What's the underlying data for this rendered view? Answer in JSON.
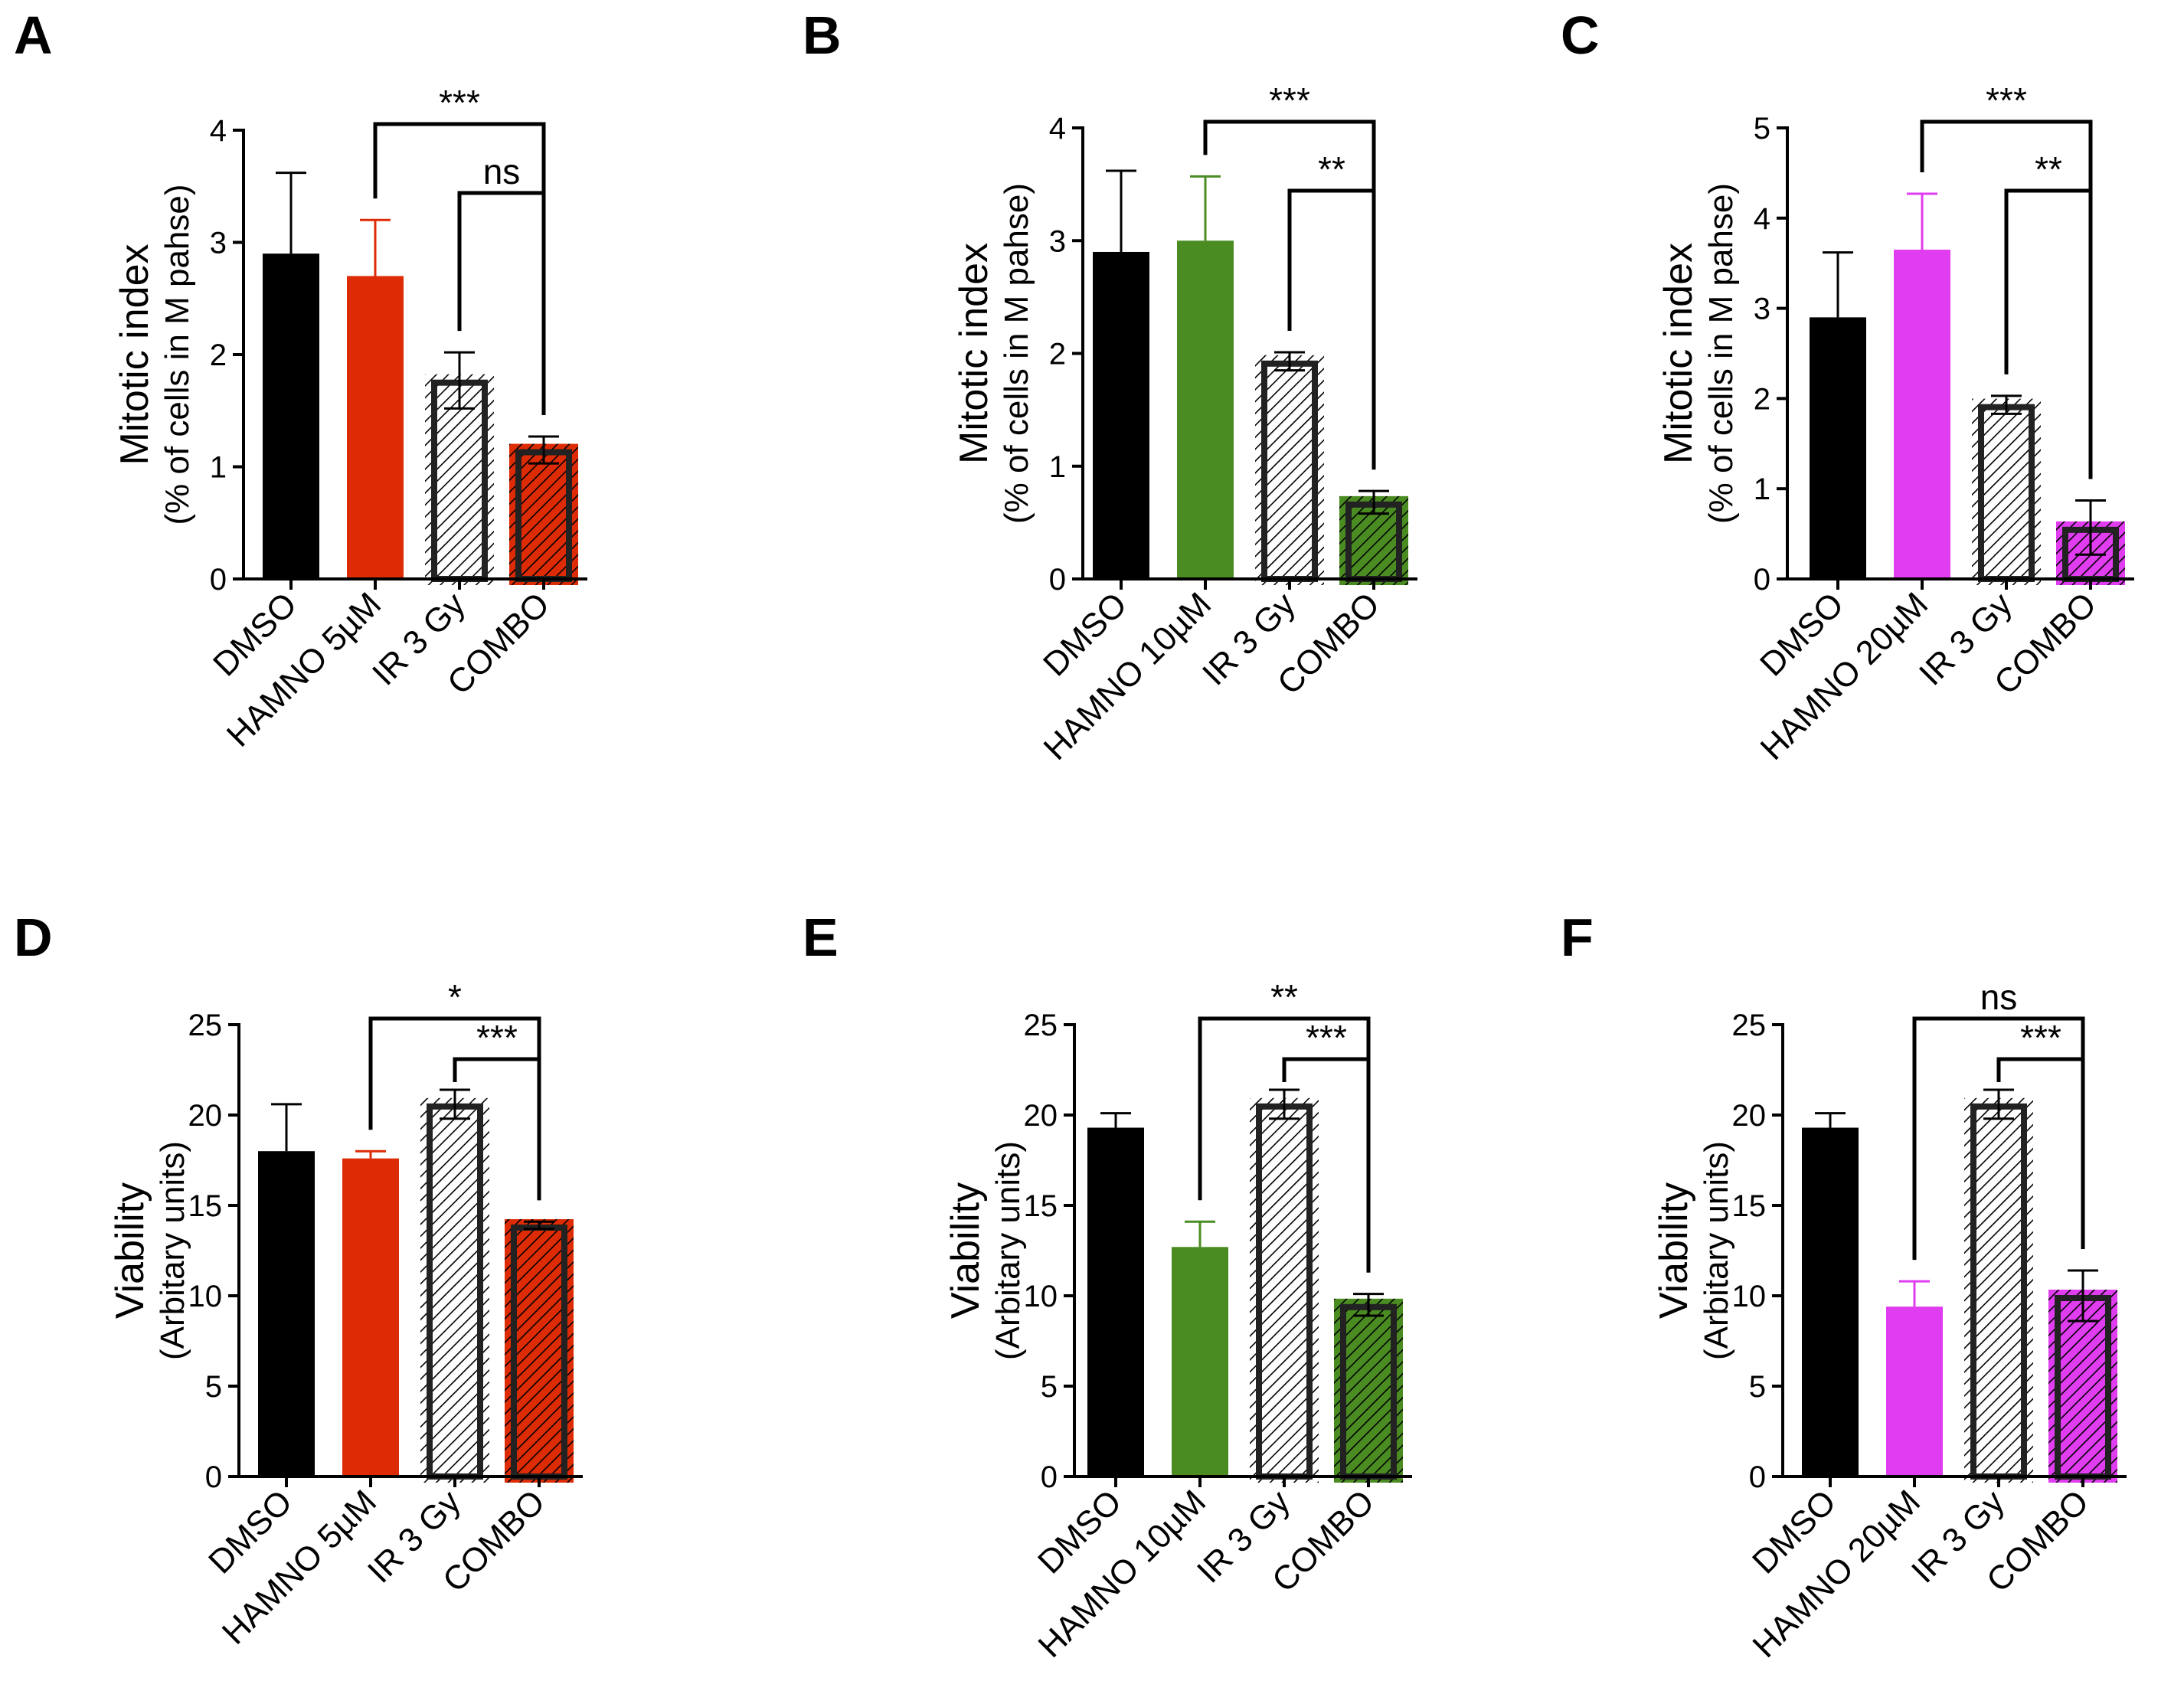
{
  "colors": {
    "dmso": "#000000",
    "red": "#dd2c05",
    "green": "#4b8c22",
    "magenta": "#e03cf0",
    "hatch_white": "#ffffff"
  },
  "chart_data": [
    {
      "panel": "A",
      "type": "bar",
      "ylabel": "Mitotic index",
      "ylabel_sub": "(% of cells in M pahse)",
      "ylim": [
        0,
        4
      ],
      "yticks": [
        "0",
        "1",
        "2",
        "3",
        "4"
      ],
      "categories": [
        "DMSO",
        "HAMNO 5µM",
        "IR 3 Gy",
        "COMBO"
      ],
      "values": [
        2.9,
        2.7,
        1.77,
        1.15
      ],
      "errors": [
        0.72,
        0.5,
        0.25,
        0.12
      ],
      "bar_styles": [
        "solid",
        "solid",
        "hatch",
        "hatch"
      ],
      "bar_colors": [
        "#000000",
        "#dd2c05",
        "#ffffff",
        "#dd2c05"
      ],
      "significance": [
        {
          "from": 1,
          "to": 3,
          "label": "***"
        },
        {
          "from": 2,
          "to": 3,
          "label": "ns"
        }
      ]
    },
    {
      "panel": "B",
      "type": "bar",
      "ylabel": "Mitotic index",
      "ylabel_sub": "(% of cells in M pahse)",
      "ylim": [
        0,
        4
      ],
      "yticks": [
        "0",
        "1",
        "2",
        "3",
        "4"
      ],
      "categories": [
        "DMSO",
        "HAMNO 10µM",
        "IR 3 Gy",
        "COMBO"
      ],
      "values": [
        2.9,
        3.0,
        1.93,
        0.68
      ],
      "errors": [
        0.72,
        0.57,
        0.08,
        0.1
      ],
      "bar_styles": [
        "solid",
        "solid",
        "hatch",
        "hatch"
      ],
      "bar_colors": [
        "#000000",
        "#4b8c22",
        "#ffffff",
        "#4b8c22"
      ],
      "significance": [
        {
          "from": 1,
          "to": 3,
          "label": "***"
        },
        {
          "from": 2,
          "to": 3,
          "label": "**"
        }
      ]
    },
    {
      "panel": "C",
      "type": "bar",
      "ylabel": "Mitotic index",
      "ylabel_sub": "(% of cells in M pahse)",
      "ylim": [
        0,
        5
      ],
      "yticks": [
        "0",
        "1",
        "2",
        "3",
        "4",
        "5"
      ],
      "categories": [
        "DMSO",
        "HAMNO 20µM",
        "IR 3 Gy",
        "COMBO"
      ],
      "values": [
        2.9,
        3.65,
        1.93,
        0.57
      ],
      "errors": [
        0.72,
        0.62,
        0.1,
        0.3
      ],
      "bar_styles": [
        "solid",
        "solid",
        "hatch",
        "hatch"
      ],
      "bar_colors": [
        "#000000",
        "#e03cf0",
        "#ffffff",
        "#e03cf0"
      ],
      "significance": [
        {
          "from": 1,
          "to": 3,
          "label": "***"
        },
        {
          "from": 2,
          "to": 3,
          "label": "**"
        }
      ]
    },
    {
      "panel": "D",
      "type": "bar",
      "ylabel": "Viability",
      "ylabel_sub": "(Arbitary units)",
      "ylim": [
        0,
        25
      ],
      "yticks": [
        "0",
        "5",
        "10",
        "15",
        "20",
        "25"
      ],
      "categories": [
        "DMSO",
        "HAMNO 5µM",
        "IR 3 Gy",
        "COMBO"
      ],
      "values": [
        18.0,
        17.6,
        20.6,
        13.9
      ],
      "errors": [
        2.6,
        0.4,
        0.8,
        0.2
      ],
      "bar_styles": [
        "solid",
        "solid",
        "hatch",
        "hatch"
      ],
      "bar_colors": [
        "#000000",
        "#dd2c05",
        "#ffffff",
        "#dd2c05"
      ],
      "significance": [
        {
          "from": 1,
          "to": 3,
          "label": "*"
        },
        {
          "from": 2,
          "to": 3,
          "label": "***"
        }
      ]
    },
    {
      "panel": "E",
      "type": "bar",
      "ylabel": "Viability",
      "ylabel_sub": "(Arbitary units)",
      "ylim": [
        0,
        25
      ],
      "yticks": [
        "0",
        "5",
        "10",
        "15",
        "20",
        "25"
      ],
      "categories": [
        "DMSO",
        "HAMNO 10µM",
        "IR 3 Gy",
        "COMBO"
      ],
      "values": [
        19.3,
        12.7,
        20.6,
        9.5
      ],
      "errors": [
        0.8,
        1.4,
        0.8,
        0.6
      ],
      "bar_styles": [
        "solid",
        "solid",
        "hatch",
        "hatch"
      ],
      "bar_colors": [
        "#000000",
        "#4b8c22",
        "#ffffff",
        "#4b8c22"
      ],
      "significance": [
        {
          "from": 1,
          "to": 3,
          "label": "**"
        },
        {
          "from": 2,
          "to": 3,
          "label": "***"
        }
      ]
    },
    {
      "panel": "F",
      "type": "bar",
      "ylabel": "Viability",
      "ylabel_sub": "(Arbitary units)",
      "ylim": [
        0,
        25
      ],
      "yticks": [
        "0",
        "5",
        "10",
        "15",
        "20",
        "25"
      ],
      "categories": [
        "DMSO",
        "HAMNO 20µM",
        "IR 3 Gy",
        "COMBO"
      ],
      "values": [
        19.3,
        9.4,
        20.6,
        10.0
      ],
      "errors": [
        0.8,
        1.4,
        0.8,
        1.4
      ],
      "bar_styles": [
        "solid",
        "solid",
        "hatch",
        "hatch"
      ],
      "bar_colors": [
        "#000000",
        "#e03cf0",
        "#ffffff",
        "#e03cf0"
      ],
      "significance": [
        {
          "from": 1,
          "to": 3,
          "label": "ns"
        },
        {
          "from": 2,
          "to": 3,
          "label": "***"
        }
      ]
    }
  ]
}
